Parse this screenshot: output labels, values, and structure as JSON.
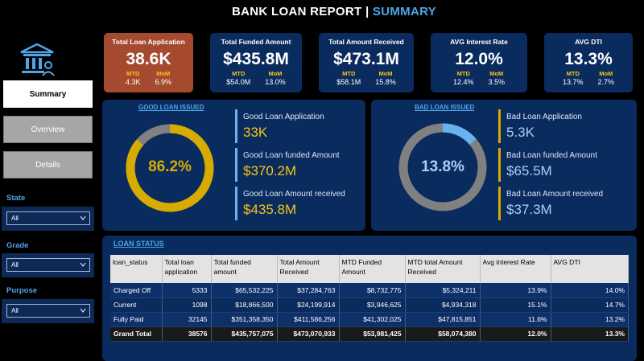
{
  "header": {
    "title_main": "BANK LOAN REPORT |",
    "title_accent": "SUMMARY"
  },
  "colors": {
    "background": "#000000",
    "card": "#0a2b5e",
    "highlight_card": "#a64a2f",
    "accent_blue": "#4fa6e8",
    "good_ring": "#d6ac00",
    "bad_ring_progress": "#6ab2ef",
    "ring_track": "#808080",
    "good_text": "#f5c518",
    "bad_text": "#a8d0f5"
  },
  "nav": {
    "logo_icon": "bank-icon",
    "buttons": [
      {
        "label": "Summary",
        "active": true
      },
      {
        "label": "Overview",
        "active": false
      },
      {
        "label": "Details",
        "active": false
      }
    ]
  },
  "filters": [
    {
      "label": "State",
      "value": "All"
    },
    {
      "label": "Grade",
      "value": "All"
    },
    {
      "label": "Purpose",
      "value": "All"
    }
  ],
  "kpis": [
    {
      "title": "Total Loan Application",
      "value": "38.6K",
      "mtd_label": "MTD",
      "mtd": "4.3K",
      "mom_label": "MoM",
      "mom": "6.9%"
    },
    {
      "title": "Total Funded Amount",
      "value": "$435.8M",
      "mtd_label": "MTD",
      "mtd": "$54.0M",
      "mom_label": "MoM",
      "mom": "13.0%"
    },
    {
      "title": "Total Amount Received",
      "value": "$473.1M",
      "mtd_label": "MTD",
      "mtd": "$58.1M",
      "mom_label": "MoM",
      "mom": "15.8%"
    },
    {
      "title": "AVG Interest Rate",
      "value": "12.0%",
      "mtd_label": "MTD",
      "mtd": "12.4%",
      "mom_label": "MoM",
      "mom": "3.5%"
    },
    {
      "title": "AVG DTI",
      "value": "13.3%",
      "mtd_label": "MTD",
      "mtd": "13.7%",
      "mom_label": "MoM",
      "mom": "2.7%"
    }
  ],
  "good_loan": {
    "title": "GOOD LOAN ISSUED",
    "percent_label": "86.2%",
    "percent": 86.2,
    "metrics": [
      {
        "label": "Good Loan Application",
        "value": "33K"
      },
      {
        "label": "Good Loan funded Amount",
        "value": "$370.2M"
      },
      {
        "label": "Good Loan Amount received",
        "value": "$435.8M"
      }
    ]
  },
  "bad_loan": {
    "title": "BAD LOAN ISSUED",
    "percent_label": "13.8%",
    "percent": 13.8,
    "metrics": [
      {
        "label": "Bad Loan Application",
        "value": "5.3K"
      },
      {
        "label": "Bad Loan funded Amount",
        "value": "$65.5M"
      },
      {
        "label": "Bad Loan Amount received",
        "value": "$37.3M"
      }
    ]
  },
  "loan_status": {
    "title": "LOAN STATUS",
    "columns": [
      "loan_status",
      "Total loan application",
      "Total funded amount",
      "Total Amount Received",
      "MTD Funded Amount",
      "MTD total Amount Received",
      "Avg interest Rate",
      "AVG DTI"
    ],
    "rows": [
      [
        "Charged Off",
        "5333",
        "$65,532,225",
        "$37,284,763",
        "$8,732,775",
        "$5,324,211",
        "13.9%",
        "14.0%"
      ],
      [
        "Current",
        "1098",
        "$18,866,500",
        "$24,199,914",
        "$3,946,625",
        "$4,934,318",
        "15.1%",
        "14.7%"
      ],
      [
        "Fully Paid",
        "32145",
        "$351,358,350",
        "$411,586,256",
        "$41,302,025",
        "$47,815,851",
        "11.6%",
        "13.2%"
      ]
    ],
    "total": [
      "Grand Total",
      "38576",
      "$435,757,075",
      "$473,070,933",
      "$53,981,425",
      "$58,074,380",
      "12.0%",
      "13.3%"
    ]
  }
}
